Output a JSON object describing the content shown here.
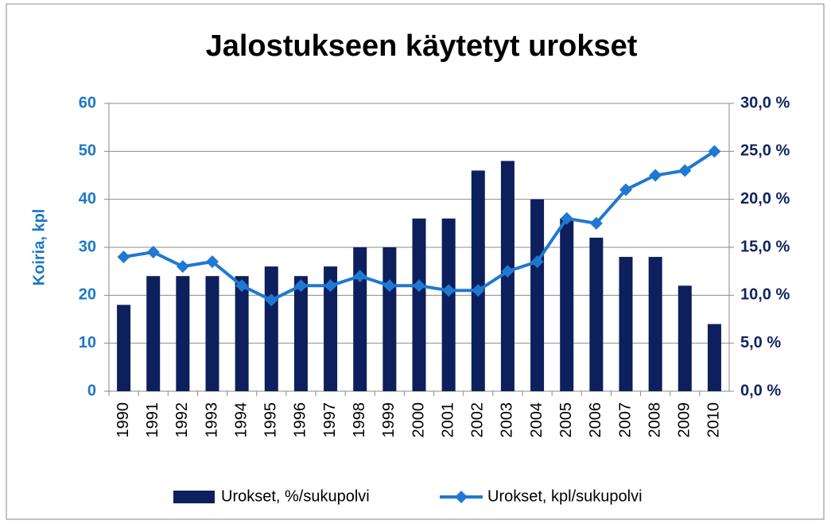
{
  "chart_data": {
    "type": "bar_line",
    "title": "Jalostukseen käytetyt urokset",
    "y_label": "Koiria, kpl",
    "categories": [
      "1990",
      "1991",
      "1992",
      "1993",
      "1994",
      "1995",
      "1996",
      "1997",
      "1998",
      "1999",
      "2000",
      "2001",
      "2002",
      "2003",
      "2004",
      "2005",
      "2006",
      "2007",
      "2008",
      "2009",
      "2010"
    ],
    "series": [
      {
        "name": "Urokset, %/sukupolvi",
        "type": "bar",
        "axis": "y2",
        "color": "#0d1f5c",
        "values": [
          9.0,
          12.0,
          12.0,
          12.0,
          12.0,
          13.0,
          12.0,
          13.0,
          15.0,
          15.0,
          18.0,
          18.0,
          23.0,
          24.0,
          20.0,
          18.0,
          16.0,
          14.0,
          14.0,
          11.0,
          7.0
        ]
      },
      {
        "name": "Urokset, kpl/sukupolvi",
        "type": "line",
        "axis": "y",
        "color": "#1f78d1",
        "values": [
          28,
          29,
          26,
          27,
          22,
          19,
          22,
          22,
          24,
          22,
          22,
          21,
          21,
          25,
          27,
          36,
          35,
          42,
          45,
          46,
          50
        ]
      }
    ],
    "ylim": [
      0,
      60
    ],
    "yticks": [
      0,
      10,
      20,
      30,
      40,
      50,
      60
    ],
    "y2lim": [
      0,
      30
    ],
    "y2ticks": [
      {
        "value": 0,
        "label": "0,0 %"
      },
      {
        "value": 5,
        "label": "5,0 %"
      },
      {
        "value": 10,
        "label": "10,0 %"
      },
      {
        "value": 15,
        "label": "15,0 %"
      },
      {
        "value": 20,
        "label": "20,0 %"
      },
      {
        "value": 25,
        "label": "25,0 %"
      },
      {
        "value": 30,
        "label": "30,0 %"
      }
    ],
    "grid": true,
    "legend": "bottom"
  }
}
